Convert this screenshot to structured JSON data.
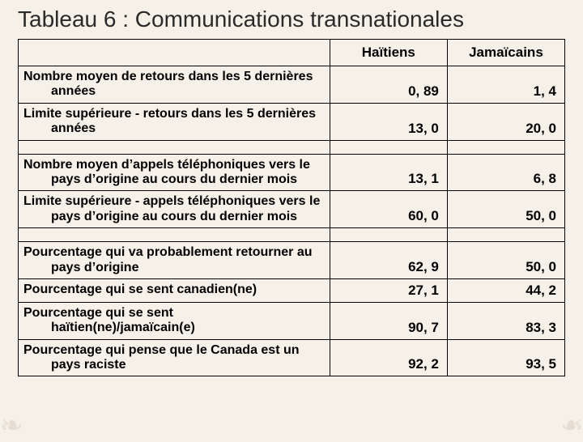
{
  "title": "Tableau 6 : Communications transnationales",
  "columns": {
    "label": "",
    "col1": "Haïtiens",
    "col2": "Jamaïcains"
  },
  "rows": [
    {
      "label_line1": "Nombre moyen de retours dans les 5 dernières",
      "label_line2": "années",
      "col1": "0, 89",
      "col2": "1, 4"
    },
    {
      "label_line1": "Limite supérieure - retours dans les 5 dernières",
      "label_line2": "années",
      "col1": "13, 0",
      "col2": "20, 0"
    },
    {
      "spacer": true
    },
    {
      "label_line1": "Nombre moyen d’appels téléphoniques vers le",
      "label_line2": "pays d’origine au cours du dernier mois",
      "col1": "13, 1",
      "col2": "6, 8"
    },
    {
      "label_line1": "Limite supérieure - appels téléphoniques vers le",
      "label_line2": "pays d’origine au cours du dernier mois",
      "col1": "60, 0",
      "col2": "50, 0"
    },
    {
      "spacer": true
    },
    {
      "label_line1": "Pourcentage qui va probablement retourner au",
      "label_line2": "pays d’origine",
      "col1": "62, 9",
      "col2": "50, 0"
    },
    {
      "label_line1": "Pourcentage qui se sent canadien(ne)",
      "label_line2": "",
      "col1": "27, 1",
      "col2": "44, 2"
    },
    {
      "label_line1": "Pourcentage qui se sent",
      "label_line2": "haïtien(ne)/jamaïcain(e)",
      "col1": "90, 7",
      "col2": "83, 3"
    },
    {
      "label_line1": "Pourcentage qui pense que le Canada est un",
      "label_line2": "pays raciste",
      "col1": "92, 2",
      "col2": "93, 5"
    }
  ],
  "style": {
    "background_color": "#f5f0e8",
    "title_fontsize": 28,
    "header_fontsize": 17,
    "cell_fontsize": 16,
    "border_color": "#000000",
    "text_color": "#2a2a2a",
    "column_widths_pct": [
      57,
      21.5,
      21.5
    ],
    "font_family": "Arial",
    "font_weight_cells": "bold"
  }
}
